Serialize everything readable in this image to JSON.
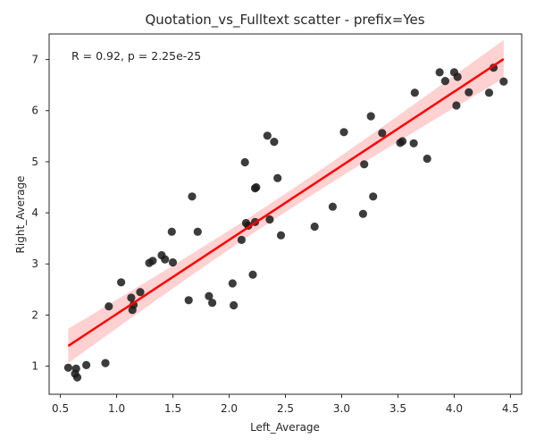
{
  "chart_data": {
    "type": "scatter",
    "title": "Quotation_vs_Fulltext scatter - prefix=Yes",
    "xlabel": "Left_Average",
    "ylabel": "Right_Average",
    "annotation": "R = 0.92, p = 2.25e-25",
    "xlim": [
      0.4,
      4.6
    ],
    "ylim": [
      0.45,
      7.5
    ],
    "xticks": [
      "0.5",
      "1.0",
      "1.5",
      "2.0",
      "2.5",
      "3.0",
      "3.5",
      "4.0",
      "4.5"
    ],
    "yticks": [
      "1",
      "2",
      "3",
      "4",
      "5",
      "6",
      "7"
    ],
    "grid": false,
    "points": {
      "x": [
        0.57,
        0.63,
        0.64,
        0.65,
        0.73,
        0.9,
        0.93,
        1.04,
        1.13,
        1.14,
        1.15,
        1.21,
        1.29,
        1.32,
        1.4,
        1.43,
        1.49,
        1.5,
        1.64,
        1.67,
        1.72,
        1.82,
        1.85,
        2.03,
        2.04,
        2.11,
        2.14,
        2.15,
        2.17,
        2.21,
        2.23,
        2.23,
        2.24,
        2.34,
        2.36,
        2.4,
        2.43,
        2.46,
        2.76,
        2.92,
        3.02,
        3.19,
        3.2,
        3.26,
        3.28,
        3.36,
        3.52,
        3.54,
        3.64,
        3.65,
        3.76,
        3.87,
        3.92,
        4.0,
        4.02,
        4.03,
        4.13,
        4.31,
        4.35,
        4.44
      ],
      "y": [
        0.97,
        0.85,
        0.95,
        0.78,
        1.02,
        1.06,
        2.17,
        2.64,
        2.34,
        2.1,
        2.2,
        2.45,
        3.02,
        3.06,
        3.17,
        3.09,
        3.63,
        3.03,
        2.29,
        4.32,
        3.63,
        2.37,
        2.24,
        2.62,
        2.19,
        3.47,
        4.99,
        3.8,
        3.75,
        2.79,
        3.82,
        4.48,
        4.5,
        5.51,
        3.87,
        5.39,
        4.68,
        3.56,
        3.73,
        4.12,
        5.58,
        3.98,
        4.95,
        5.89,
        4.32,
        5.56,
        5.37,
        5.4,
        5.36,
        6.35,
        5.06,
        6.75,
        6.58,
        6.75,
        6.1,
        6.66,
        6.36,
        6.35,
        6.84,
        6.57
      ]
    },
    "regression": {
      "slope": 1.45,
      "intercept": 0.57,
      "x_range": [
        0.57,
        4.44
      ]
    },
    "colors": {
      "points": "#1a1a1a",
      "line": "#ff0000",
      "band": "#ff9999"
    }
  }
}
